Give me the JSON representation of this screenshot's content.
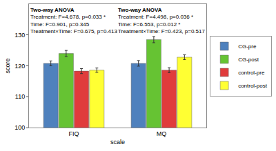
{
  "chart_data": {
    "type": "bar",
    "x_label": "scale",
    "y_label": "score",
    "categories": [
      "FIQ",
      "MQ"
    ],
    "series": [
      {
        "name": "CG-pre",
        "color": "#4f81bd",
        "values": [
          120.8,
          120.8
        ],
        "errors": [
          0.8,
          0.9
        ]
      },
      {
        "name": "CG-post",
        "color": "#66c333",
        "values": [
          124.0,
          128.5
        ],
        "errors": [
          1.0,
          1.0
        ]
      },
      {
        "name": "control-pre",
        "color": "#e03c3c",
        "values": [
          118.3,
          118.6
        ],
        "errors": [
          0.8,
          0.8
        ]
      },
      {
        "name": "control-post",
        "color": "#ffff33",
        "values": [
          118.6,
          122.8
        ],
        "errors": [
          0.7,
          0.8
        ]
      }
    ],
    "ylim": [
      100,
      140
    ],
    "yticks": [
      100,
      110,
      120,
      130
    ],
    "grid": false,
    "legend": "right",
    "annotations": [
      {
        "category": "FIQ",
        "lines": [
          "Two-way ANOVA",
          "Treatment: F=4.678, p=0.033 *",
          "Time: F=0.901, p=0.345",
          "Treatment×Time: F=0.675, p=0.413"
        ]
      },
      {
        "category": "MQ",
        "lines": [
          "Two-way ANOVA",
          "Treatment: F=4.498, p=0.036 *",
          "Time: F=6.553, p=0.012 *",
          "Treatment×Time: F=0.423, p=0.517"
        ]
      }
    ]
  }
}
